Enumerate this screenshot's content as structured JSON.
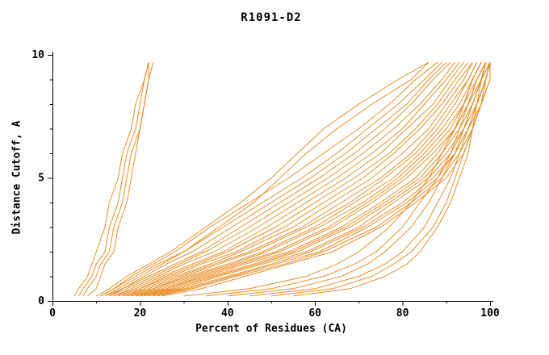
{
  "chart_data": {
    "type": "line",
    "title": "R1091-D2",
    "xlabel": "Percent of Residues (CA)",
    "ylabel": "Distance Cutoff, A",
    "xlim": [
      0,
      100
    ],
    "ylim": [
      0,
      10
    ],
    "x_major_ticks": [
      0,
      20,
      40,
      60,
      80,
      100
    ],
    "x_minor_ticks": [
      10,
      30,
      50,
      70,
      90
    ],
    "y_major_ticks": [
      0,
      5,
      10
    ],
    "y_minor_ticks": [
      1,
      2,
      3,
      4,
      6,
      7,
      8,
      9
    ],
    "grid": false,
    "legend": "none",
    "line_color": "#e8820e",
    "axis_color": "#000000",
    "background_color": "#ffffff",
    "cutoffs": [
      0.2,
      0.5,
      1,
      1.5,
      2,
      3,
      4,
      5,
      6,
      7,
      8,
      9,
      9.7
    ],
    "series": [
      [
        5,
        6,
        8,
        9,
        10,
        12,
        13,
        15,
        16,
        18,
        19,
        21,
        22
      ],
      [
        6,
        7,
        9,
        10,
        12,
        13,
        15,
        16,
        17,
        19,
        20,
        21,
        22
      ],
      [
        7,
        8,
        10,
        11,
        13,
        14,
        16,
        17,
        18,
        20,
        21,
        22,
        22
      ],
      [
        8,
        10,
        11,
        12,
        14,
        15,
        17,
        18,
        19,
        20,
        21,
        22,
        23
      ],
      [
        10,
        13,
        17,
        22,
        27,
        35,
        43,
        50,
        56,
        62,
        70,
        79,
        86
      ],
      [
        11,
        14,
        19,
        24,
        30,
        38,
        46,
        52,
        58,
        65,
        73,
        82,
        86
      ],
      [
        11,
        14,
        18,
        23,
        28,
        36,
        45,
        54,
        62,
        70,
        77,
        83,
        88
      ],
      [
        12,
        15,
        20,
        25,
        30,
        39,
        48,
        57,
        65,
        72,
        79,
        85,
        89
      ],
      [
        12,
        16,
        21,
        26,
        32,
        41,
        50,
        59,
        67,
        74,
        81,
        86,
        90
      ],
      [
        13,
        16,
        22,
        28,
        34,
        43,
        52,
        61,
        69,
        76,
        82,
        87,
        91
      ],
      [
        13,
        17,
        23,
        29,
        35,
        45,
        54,
        63,
        71,
        78,
        84,
        89,
        92
      ],
      [
        14,
        18,
        24,
        30,
        37,
        47,
        56,
        65,
        73,
        80,
        85,
        90,
        93
      ],
      [
        14,
        19,
        25,
        32,
        39,
        49,
        58,
        67,
        75,
        81,
        87,
        91,
        94
      ],
      [
        15,
        20,
        26,
        33,
        40,
        51,
        60,
        69,
        77,
        83,
        88,
        92,
        95
      ],
      [
        15,
        20,
        27,
        34,
        42,
        53,
        62,
        71,
        78,
        84,
        89,
        93,
        96
      ],
      [
        16,
        21,
        28,
        36,
        43,
        55,
        64,
        73,
        80,
        86,
        90,
        94,
        96
      ],
      [
        16,
        22,
        29,
        37,
        45,
        57,
        66,
        75,
        82,
        87,
        91,
        95,
        97
      ],
      [
        17,
        23,
        30,
        38,
        46,
        58,
        68,
        76,
        83,
        88,
        92,
        95,
        97
      ],
      [
        17,
        23,
        31,
        40,
        48,
        60,
        69,
        78,
        84,
        89,
        93,
        96,
        98
      ],
      [
        18,
        24,
        32,
        41,
        49,
        61,
        71,
        79,
        85,
        90,
        94,
        96,
        98
      ],
      [
        18,
        25,
        33,
        42,
        51,
        63,
        72,
        80,
        86,
        91,
        94,
        97,
        99
      ],
      [
        19,
        26,
        34,
        43,
        52,
        64,
        73,
        81,
        87,
        92,
        95,
        97,
        99
      ],
      [
        19,
        26,
        35,
        44,
        54,
        66,
        75,
        83,
        88,
        92,
        95,
        98,
        99
      ],
      [
        20,
        27,
        36,
        46,
        55,
        67,
        76,
        84,
        89,
        93,
        96,
        98,
        100
      ],
      [
        20,
        28,
        37,
        47,
        56,
        68,
        77,
        85,
        90,
        94,
        96,
        98,
        100
      ],
      [
        21,
        29,
        38,
        48,
        58,
        70,
        78,
        86,
        91,
        94,
        97,
        99,
        100
      ],
      [
        22,
        30,
        40,
        50,
        59,
        71,
        80,
        87,
        92,
        95,
        97,
        99,
        100
      ],
      [
        23,
        31,
        41,
        51,
        61,
        72,
        81,
        88,
        92,
        95,
        98,
        99,
        100
      ],
      [
        24,
        32,
        42,
        53,
        62,
        74,
        82,
        89,
        93,
        96,
        98,
        100,
        100
      ],
      [
        25,
        34,
        44,
        54,
        64,
        75,
        83,
        90,
        94,
        96,
        98,
        100,
        100
      ],
      [
        30,
        45,
        58,
        65,
        70,
        77,
        82,
        86,
        89,
        92,
        94,
        96,
        98
      ],
      [
        35,
        50,
        62,
        69,
        74,
        80,
        84,
        88,
        91,
        93,
        95,
        97,
        99
      ],
      [
        40,
        55,
        66,
        72,
        76,
        82,
        86,
        89,
        92,
        94,
        96,
        98,
        99
      ],
      [
        45,
        60,
        70,
        76,
        80,
        85,
        88,
        91,
        93,
        95,
        97,
        98,
        100
      ],
      [
        50,
        64,
        73,
        78,
        82,
        87,
        90,
        92,
        94,
        96,
        97,
        99,
        100
      ],
      [
        55,
        68,
        76,
        81,
        84,
        88,
        91,
        93,
        95,
        96,
        98,
        99,
        100
      ]
    ]
  }
}
